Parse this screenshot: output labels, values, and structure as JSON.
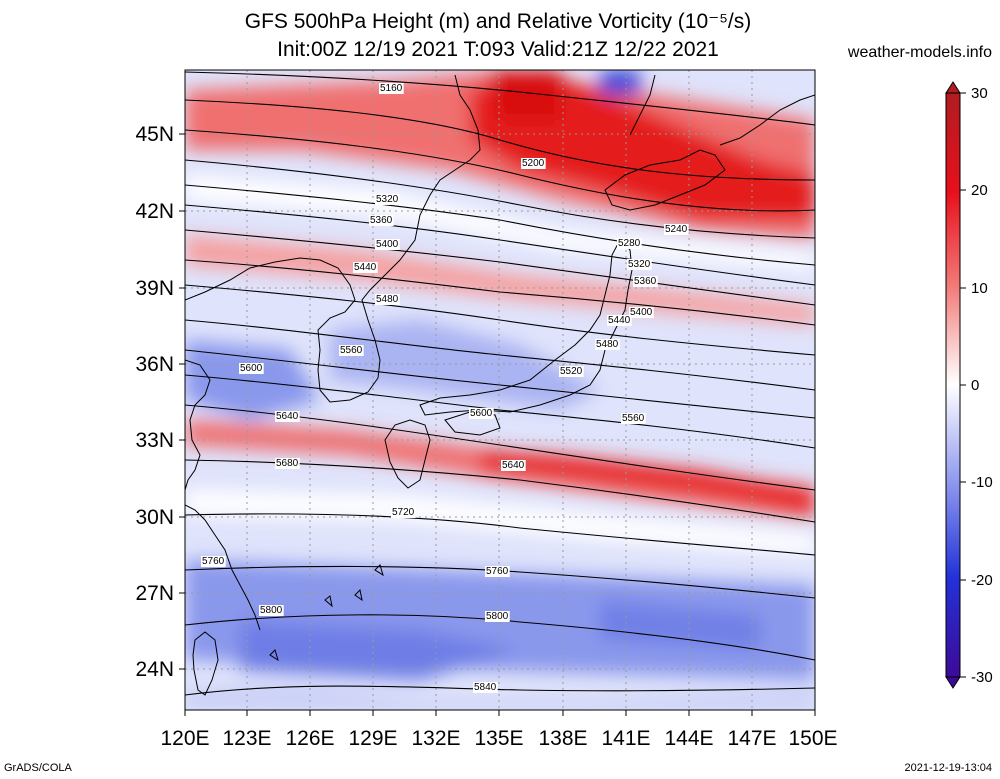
{
  "header": {
    "title_line1": "GFS 500hPa Height (m) and Relative Vorticity (10⁻⁵/s)",
    "title_line2": "Init:00Z 12/19 2021 T:093 Valid:21Z 12/22 2021",
    "site": "weather-models.info"
  },
  "footer": {
    "left": "GrADS/COLA",
    "right": "2021-12-19-13:04"
  },
  "map": {
    "lon_labels": [
      "120E",
      "123E",
      "126E",
      "129E",
      "132E",
      "135E",
      "138E",
      "141E",
      "144E",
      "147E",
      "150E"
    ],
    "lat_labels": [
      "45N",
      "42N",
      "39N",
      "36N",
      "33N",
      "30N",
      "27N",
      "24N"
    ],
    "contour_labels": [
      "5160",
      "5200",
      "5240",
      "5280",
      "5320",
      "5360",
      "5400",
      "5440",
      "5480",
      "5520",
      "5560",
      "5600",
      "5640",
      "5680",
      "5720",
      "5760",
      "5800",
      "5840"
    ],
    "colors": {
      "positive": "#e8101c",
      "negative": "#2232d8",
      "neutral": "#ffffff"
    }
  },
  "colorbar": {
    "ticks": [
      "30",
      "20",
      "10",
      "0",
      "-10",
      "-20",
      "-30"
    ],
    "colors": [
      "#b01c20",
      "#e8101c",
      "#f27a78",
      "#ffffff",
      "#8c96ee",
      "#2232d8",
      "#3d0a98"
    ]
  }
}
